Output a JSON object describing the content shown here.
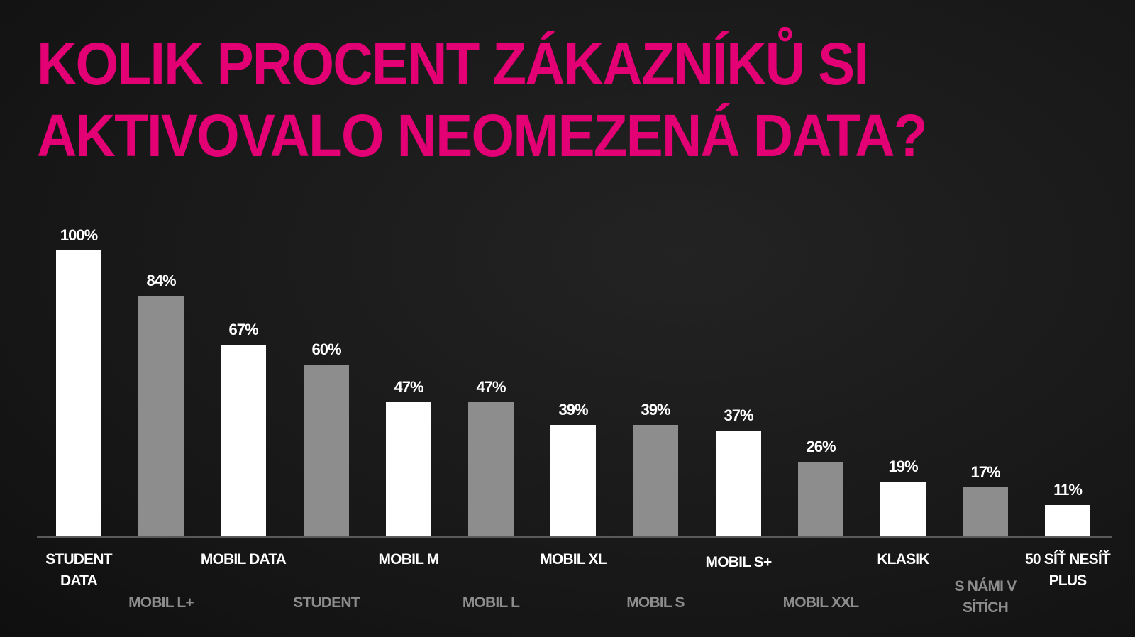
{
  "title": {
    "line1": "KOLIK PROCENT ZÁKAZNÍKŮ SI",
    "line2": "AKTIVOVALO NEOMEZENÁ DATA?"
  },
  "colors": {
    "title": "#e20074",
    "bar_primary": "#ffffff",
    "bar_secondary": "#8d8d8d",
    "background": "#1a1a1a"
  },
  "chart_data": {
    "type": "bar",
    "title": "KOLIK PROCENT ZÁKAZNÍKŮ SI AKTIVOVALO NEOMEZENÁ DATA?",
    "xlabel": "",
    "ylabel": "",
    "ylim": [
      0,
      100
    ],
    "grid": false,
    "legend": "none",
    "categories": [
      "STUDENT DATA",
      "MOBIL L+",
      "MOBIL DATA",
      "STUDENT",
      "MOBIL M",
      "MOBIL L",
      "MOBIL XL",
      "MOBIL S",
      "MOBIL S+",
      "MOBIL XXL",
      "KLASIK",
      "S NÁMI V SÍTÍCH",
      "50 SÍŤ NESÍŤ PLUS"
    ],
    "values": [
      100,
      84,
      67,
      60,
      47,
      47,
      39,
      39,
      37,
      26,
      19,
      17,
      11
    ],
    "value_labels": [
      "100%",
      "84%",
      "67%",
      "60%",
      "47%",
      "47%",
      "39%",
      "39%",
      "37%",
      "26%",
      "19%",
      "17%",
      "11%"
    ]
  },
  "bars": [
    {
      "label": "STUDENT DATA",
      "value": "100%"
    },
    {
      "label": "MOBIL L+",
      "value": "84%"
    },
    {
      "label": "MOBIL DATA",
      "value": "67%"
    },
    {
      "label": "STUDENT",
      "value": "60%"
    },
    {
      "label": "MOBIL M",
      "value": "47%"
    },
    {
      "label": "MOBIL L",
      "value": "47%"
    },
    {
      "label": "MOBIL XL",
      "value": "39%"
    },
    {
      "label": "MOBIL S",
      "value": "39%"
    },
    {
      "label": "MOBIL S+",
      "value": "37%"
    },
    {
      "label": "MOBIL XXL",
      "value": "26%"
    },
    {
      "label": "KLASIK",
      "value": "19%"
    },
    {
      "label": "S NÁMI V SÍTÍCH",
      "value": "17%"
    },
    {
      "label": "50 SÍŤ NESÍŤ PLUS",
      "value": "11%"
    }
  ]
}
